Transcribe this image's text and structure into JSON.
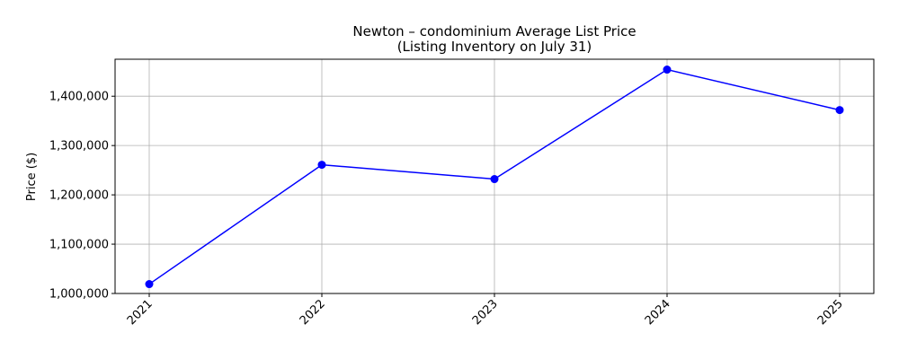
{
  "chart_data": {
    "type": "line",
    "title": "Newton – condominium Average List Price",
    "subtitle": "(Listing Inventory on July 31)",
    "xlabel": "",
    "ylabel": "Price ($)",
    "categories": [
      "2021",
      "2022",
      "2023",
      "2024",
      "2025"
    ],
    "series": [
      {
        "values": [
          1019000,
          1261000,
          1232000,
          1454000,
          1372000
        ],
        "color": "#0000ff"
      }
    ],
    "ylim": [
      1000000,
      1475000
    ],
    "yticks": [
      1000000,
      1100000,
      1200000,
      1300000,
      1400000
    ],
    "ytick_labels": [
      "1,000,000",
      "1,100,000",
      "1,200,000",
      "1,300,000",
      "1,400,000"
    ],
    "grid": true,
    "legend": "none"
  }
}
